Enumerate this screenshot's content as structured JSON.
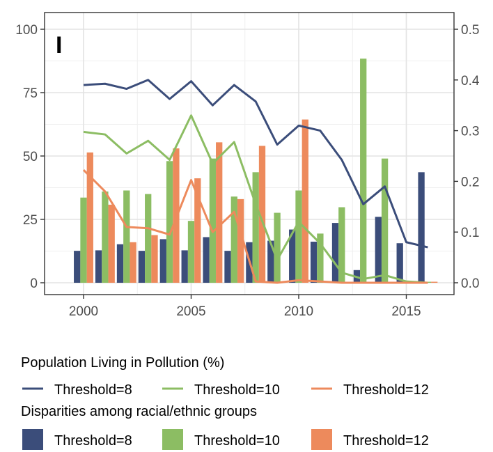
{
  "chart_data": {
    "type": "bar",
    "panel_label": "I",
    "grid": true,
    "x": [
      2000,
      2001,
      2002,
      2003,
      2004,
      2005,
      2006,
      2007,
      2008,
      2009,
      2010,
      2011,
      2012,
      2013,
      2014,
      2015,
      2016
    ],
    "x_ticks": [
      2000,
      2005,
      2010,
      2015
    ],
    "y_left_ticks": [
      0,
      25,
      50,
      75,
      100
    ],
    "y_left_lim": [
      0,
      100
    ],
    "y_right_ticks": [
      "0.0",
      "0.1",
      "0.2",
      "0.3",
      "0.4",
      "0.5"
    ],
    "y_right_lim": [
      0,
      0.5
    ],
    "colors": {
      "t8": "#3b4d7a",
      "t10": "#8cbd63",
      "t12": "#ed8a5c"
    },
    "line_series": [
      {
        "name": "Threshold=8",
        "color_key": "t8",
        "values": [
          78,
          78.5,
          76.5,
          80,
          72.5,
          79.5,
          70,
          78,
          71.5,
          54.5,
          62,
          60,
          48.5,
          31,
          38,
          16,
          14
        ]
      },
      {
        "name": "Threshold=10",
        "color_key": "t10",
        "values": [
          59.5,
          58.5,
          51,
          56,
          48.5,
          66,
          47,
          55.5,
          31,
          9,
          24,
          15.5,
          4,
          1.5,
          3,
          0.5,
          0
        ]
      },
      {
        "name": "Threshold=12",
        "color_key": "t12",
        "values": [
          44.5,
          36,
          22,
          21.5,
          19,
          40.5,
          20,
          28,
          0.5,
          0,
          1,
          0.5,
          0,
          0,
          0,
          0,
          0
        ]
      }
    ],
    "bar_series": [
      {
        "name": "Threshold=8",
        "color_key": "t8",
        "values": [
          0.063,
          0.064,
          0.076,
          0.063,
          0.086,
          0.064,
          0.09,
          0.063,
          0.08,
          0.083,
          0.105,
          0.081,
          0.118,
          0.025,
          0.13,
          0.078,
          0.218
        ]
      },
      {
        "name": "Threshold=10",
        "color_key": "t10",
        "values": [
          0.168,
          0.18,
          0.182,
          0.175,
          0.24,
          0.122,
          0.245,
          0.17,
          0.218,
          0.138,
          0.182,
          0.097,
          0.149,
          0.442,
          0.245,
          0.004,
          0.002
        ]
      },
      {
        "name": "Threshold=12",
        "color_key": "t12",
        "values": [
          0.257,
          0.154,
          0.08,
          0.094,
          0.265,
          0.206,
          0.277,
          0.165,
          0.27,
          0.0,
          0.322,
          0.0,
          0.0,
          0.0,
          0.0,
          0.0,
          0.002
        ]
      }
    ]
  },
  "legend": {
    "line_title": "Population Living in Pollution (%)",
    "line_items": [
      "Threshold=8",
      "Threshold=10",
      "Threshold=12"
    ],
    "bar_title": "Disparities among racial/ethnic groups",
    "bar_items": [
      "Threshold=8",
      "Threshold=10",
      "Threshold=12"
    ]
  }
}
